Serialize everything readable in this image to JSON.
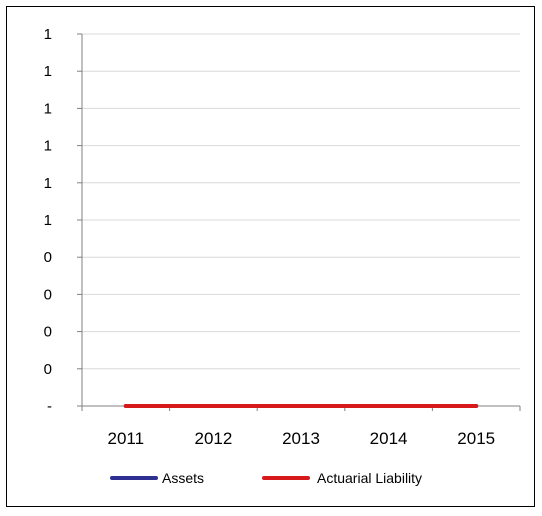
{
  "chart_data": {
    "type": "line",
    "categories": [
      "2011",
      "2012",
      "2013",
      "2014",
      "2015"
    ],
    "y_tick_labels": [
      "1",
      "1",
      "1",
      "1",
      "1",
      "1",
      "0",
      "0",
      "0",
      "0",
      "-"
    ],
    "ylim": [
      0,
      1
    ],
    "grid": true,
    "legend_position": "bottom",
    "series": [
      {
        "name": "Assets",
        "color": "#2E3192",
        "values": [
          0,
          0,
          0,
          0,
          0
        ]
      },
      {
        "name": "Actuarial Liability",
        "color": "#D7191C",
        "values": [
          0,
          0,
          0,
          0,
          0
        ]
      }
    ]
  }
}
